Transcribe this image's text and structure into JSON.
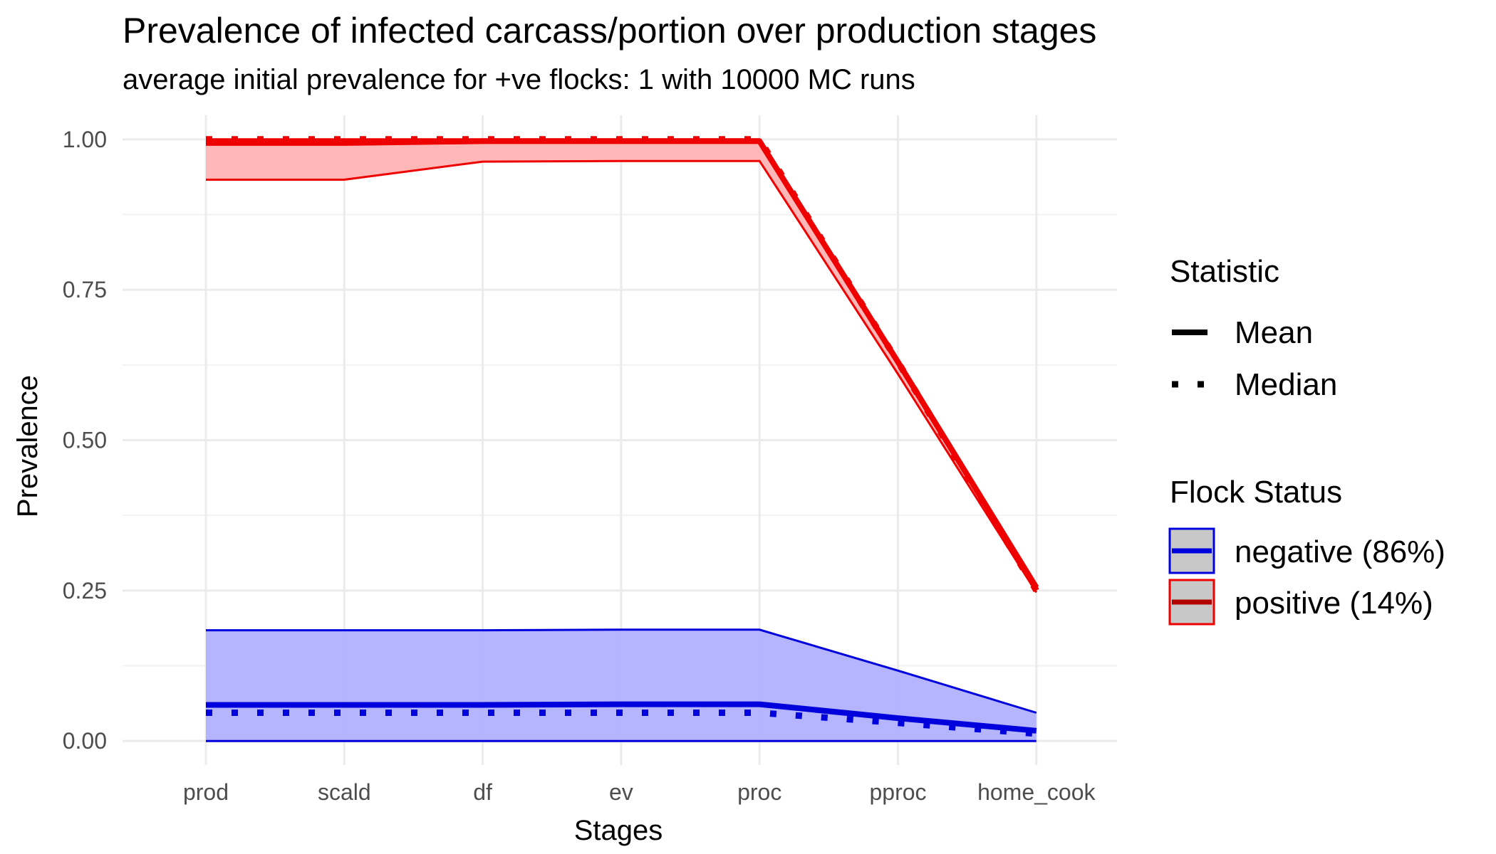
{
  "chart_data": {
    "type": "line",
    "title": "Prevalence of infected carcass/portion over production stages",
    "subtitle": "average initial prevalence for +ve flocks: 1 with 10000 MC runs",
    "xlabel": "Stages",
    "ylabel": "Prevalence",
    "categories": [
      "prod",
      "scald",
      "df",
      "ev",
      "proc",
      "pproc",
      "home_cook"
    ],
    "ylim": [
      -0.04,
      1.04
    ],
    "yticks": [
      0.0,
      0.25,
      0.5,
      0.75,
      1.0
    ],
    "ytick_labels": [
      "0.00",
      "0.25",
      "0.50",
      "0.75",
      "1.00"
    ],
    "grid": true,
    "legend_placement": "right",
    "legend": {
      "statistic_title": "Statistic",
      "statistic_items": [
        "Mean",
        "Median"
      ],
      "flock_title": "Flock Status",
      "flock_items": [
        "negative (86%)",
        "positive (14%)"
      ]
    },
    "series": [
      {
        "name": "negative (86%)",
        "color": "#0000dd",
        "fill": "#b0b0ff",
        "mean": [
          0.06,
          0.06,
          0.06,
          0.061,
          0.061,
          0.038,
          0.017
        ],
        "median": [
          0.047,
          0.047,
          0.047,
          0.047,
          0.047,
          0.03,
          0.012
        ],
        "lower": [
          0.0,
          0.0,
          0.0,
          0.0,
          0.0,
          0.0,
          0.0
        ],
        "upper": [
          0.184,
          0.184,
          0.184,
          0.185,
          0.185,
          0.117,
          0.047
        ]
      },
      {
        "name": "positive (14%)",
        "color": "#ee0000",
        "fill": "#ffb3b3",
        "mean": [
          0.994,
          0.994,
          0.997,
          0.997,
          0.997,
          0.63,
          0.255
        ],
        "median": [
          1.0,
          1.0,
          1.0,
          1.0,
          1.0,
          0.63,
          0.25
        ],
        "lower": [
          0.933,
          0.933,
          0.963,
          0.964,
          0.964,
          0.61,
          0.247
        ],
        "upper": [
          1.0,
          1.0,
          1.0,
          1.0,
          1.0,
          0.635,
          0.258
        ]
      }
    ]
  }
}
